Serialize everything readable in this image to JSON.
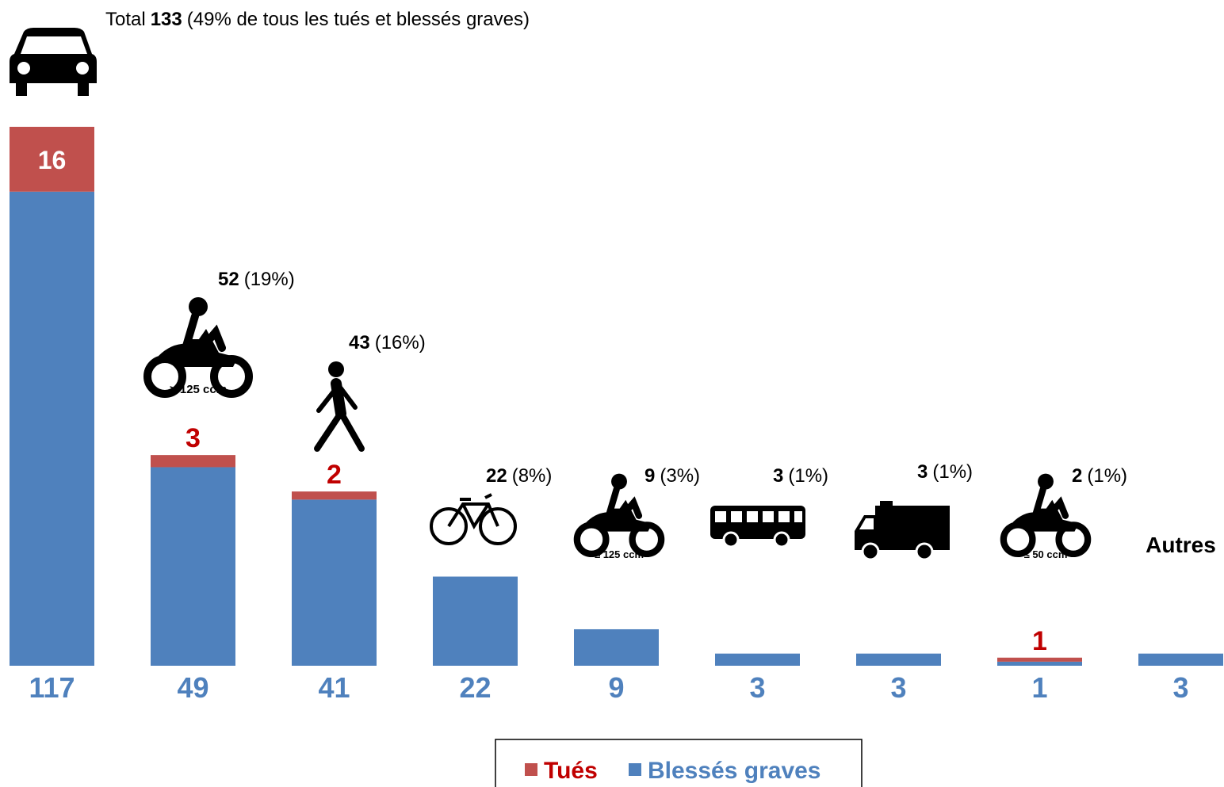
{
  "chart_data": {
    "type": "bar",
    "categories": [
      null,
      null,
      null,
      null,
      null,
      null,
      null,
      null,
      "Autres"
    ],
    "icon_labels": [
      null,
      "> 125 ccm",
      null,
      null,
      "≤ 125 ccm",
      null,
      null,
      "≤ 50 ccm",
      null
    ],
    "annotations": [
      {
        "prefix": "Total",
        "bold": "133",
        "rest": "(49% de tous les tués et blessés graves)"
      },
      {
        "bold": "52",
        "rest": "(19%)"
      },
      {
        "bold": "43",
        "rest": "(16%)"
      },
      {
        "bold": "22",
        "rest": "(8%)"
      },
      {
        "bold": "9",
        "rest": "(3%)"
      },
      {
        "bold": "3",
        "rest": "(1%)"
      },
      {
        "bold": "3",
        "rest": "(1%)"
      },
      {
        "bold": "2",
        "rest": "(1%)"
      },
      null
    ],
    "series": [
      {
        "name": "Blessés graves",
        "color": "#4f81bd",
        "label_color": "#4f81bd",
        "values": [
          117,
          49,
          41,
          22,
          9,
          3,
          3,
          1,
          3
        ]
      },
      {
        "name": "Tués",
        "color": "#c0504d",
        "label_color": "#c00000",
        "values": [
          16,
          3,
          2,
          0,
          0,
          0,
          0,
          1,
          0
        ]
      }
    ],
    "ylim": [
      0,
      133
    ]
  }
}
